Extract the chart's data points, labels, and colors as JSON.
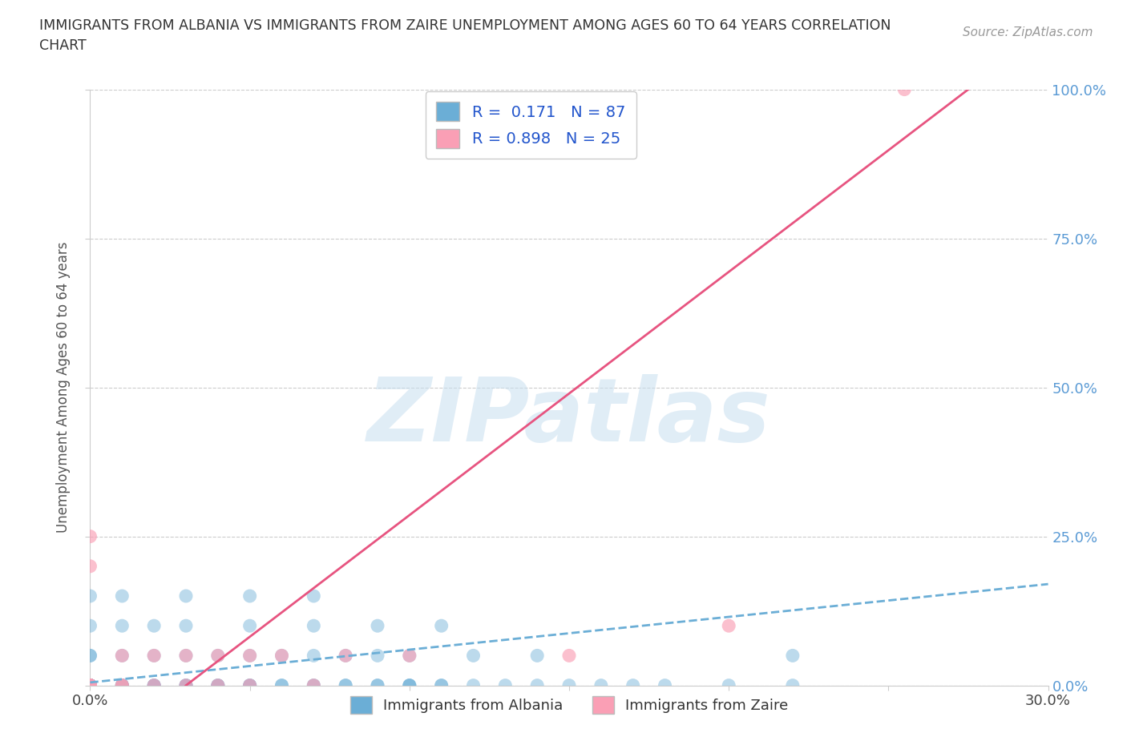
{
  "title": "IMMIGRANTS FROM ALBANIA VS IMMIGRANTS FROM ZAIRE UNEMPLOYMENT AMONG AGES 60 TO 64 YEARS CORRELATION\nCHART",
  "source_text": "Source: ZipAtlas.com",
  "ylabel": "Unemployment Among Ages 60 to 64 years",
  "xlim": [
    0.0,
    0.3
  ],
  "ylim": [
    0.0,
    1.0
  ],
  "xticks": [
    0.0,
    0.05,
    0.1,
    0.15,
    0.2,
    0.25,
    0.3
  ],
  "yticks": [
    0.0,
    0.25,
    0.5,
    0.75,
    1.0
  ],
  "ytick_labels": [
    "0.0%",
    "25.0%",
    "50.0%",
    "75.0%",
    "100.0%"
  ],
  "background_color": "#ffffff",
  "watermark_text": "ZIPatlas",
  "albania_color": "#6baed6",
  "zaire_color": "#fa9fb5",
  "albania_line_color": "#6baed6",
  "zaire_line_color": "#e75480",
  "albania_R": 0.171,
  "albania_N": 87,
  "zaire_R": 0.898,
  "zaire_N": 25,
  "legend_label_albania": "Immigrants from Albania",
  "legend_label_zaire": "Immigrants from Zaire",
  "grid_color": "#cccccc",
  "albania_line": [
    [
      0.0,
      0.005
    ],
    [
      0.3,
      0.17
    ]
  ],
  "zaire_line": [
    [
      0.03,
      0.0
    ],
    [
      0.275,
      1.0
    ]
  ],
  "albania_points": [
    [
      0.0,
      0.0
    ],
    [
      0.0,
      0.0
    ],
    [
      0.0,
      0.0
    ],
    [
      0.0,
      0.0
    ],
    [
      0.0,
      0.0
    ],
    [
      0.0,
      0.0
    ],
    [
      0.0,
      0.0
    ],
    [
      0.0,
      0.0
    ],
    [
      0.0,
      0.0
    ],
    [
      0.0,
      0.0
    ],
    [
      0.0,
      0.0
    ],
    [
      0.0,
      0.0
    ],
    [
      0.0,
      0.0
    ],
    [
      0.0,
      0.0
    ],
    [
      0.0,
      0.0
    ],
    [
      0.0,
      0.0
    ],
    [
      0.0,
      0.0
    ],
    [
      0.0,
      0.0
    ],
    [
      0.0,
      0.0
    ],
    [
      0.0,
      0.0
    ],
    [
      0.01,
      0.0
    ],
    [
      0.01,
      0.0
    ],
    [
      0.01,
      0.0
    ],
    [
      0.01,
      0.0
    ],
    [
      0.01,
      0.0
    ],
    [
      0.02,
      0.0
    ],
    [
      0.02,
      0.0
    ],
    [
      0.02,
      0.0
    ],
    [
      0.03,
      0.0
    ],
    [
      0.03,
      0.0
    ],
    [
      0.03,
      0.0
    ],
    [
      0.04,
      0.0
    ],
    [
      0.04,
      0.0
    ],
    [
      0.04,
      0.0
    ],
    [
      0.05,
      0.0
    ],
    [
      0.05,
      0.0
    ],
    [
      0.05,
      0.0
    ],
    [
      0.06,
      0.0
    ],
    [
      0.06,
      0.0
    ],
    [
      0.07,
      0.0
    ],
    [
      0.07,
      0.0
    ],
    [
      0.08,
      0.0
    ],
    [
      0.08,
      0.0
    ],
    [
      0.09,
      0.0
    ],
    [
      0.09,
      0.0
    ],
    [
      0.1,
      0.0
    ],
    [
      0.1,
      0.0
    ],
    [
      0.1,
      0.0
    ],
    [
      0.11,
      0.0
    ],
    [
      0.11,
      0.0
    ],
    [
      0.12,
      0.0
    ],
    [
      0.13,
      0.0
    ],
    [
      0.14,
      0.0
    ],
    [
      0.15,
      0.0
    ],
    [
      0.16,
      0.0
    ],
    [
      0.17,
      0.0
    ],
    [
      0.18,
      0.0
    ],
    [
      0.2,
      0.0
    ],
    [
      0.22,
      0.0
    ],
    [
      0.0,
      0.05
    ],
    [
      0.0,
      0.05
    ],
    [
      0.01,
      0.05
    ],
    [
      0.02,
      0.05
    ],
    [
      0.03,
      0.05
    ],
    [
      0.04,
      0.05
    ],
    [
      0.05,
      0.05
    ],
    [
      0.06,
      0.05
    ],
    [
      0.07,
      0.05
    ],
    [
      0.08,
      0.05
    ],
    [
      0.09,
      0.05
    ],
    [
      0.1,
      0.05
    ],
    [
      0.12,
      0.05
    ],
    [
      0.14,
      0.05
    ],
    [
      0.0,
      0.1
    ],
    [
      0.01,
      0.1
    ],
    [
      0.02,
      0.1
    ],
    [
      0.03,
      0.1
    ],
    [
      0.05,
      0.1
    ],
    [
      0.07,
      0.1
    ],
    [
      0.09,
      0.1
    ],
    [
      0.11,
      0.1
    ],
    [
      0.0,
      0.15
    ],
    [
      0.01,
      0.15
    ],
    [
      0.03,
      0.15
    ],
    [
      0.05,
      0.15
    ],
    [
      0.07,
      0.15
    ],
    [
      0.22,
      0.05
    ]
  ],
  "zaire_points": [
    [
      0.0,
      0.0
    ],
    [
      0.0,
      0.0
    ],
    [
      0.0,
      0.0
    ],
    [
      0.0,
      0.0
    ],
    [
      0.0,
      0.0
    ],
    [
      0.0,
      0.25
    ],
    [
      0.0,
      0.2
    ],
    [
      0.01,
      0.0
    ],
    [
      0.01,
      0.0
    ],
    [
      0.01,
      0.05
    ],
    [
      0.02,
      0.0
    ],
    [
      0.02,
      0.05
    ],
    [
      0.03,
      0.0
    ],
    [
      0.03,
      0.05
    ],
    [
      0.04,
      0.0
    ],
    [
      0.04,
      0.05
    ],
    [
      0.05,
      0.0
    ],
    [
      0.05,
      0.05
    ],
    [
      0.06,
      0.05
    ],
    [
      0.07,
      0.0
    ],
    [
      0.08,
      0.05
    ],
    [
      0.1,
      0.05
    ],
    [
      0.15,
      0.05
    ],
    [
      0.2,
      0.1
    ],
    [
      0.255,
      1.0
    ]
  ]
}
